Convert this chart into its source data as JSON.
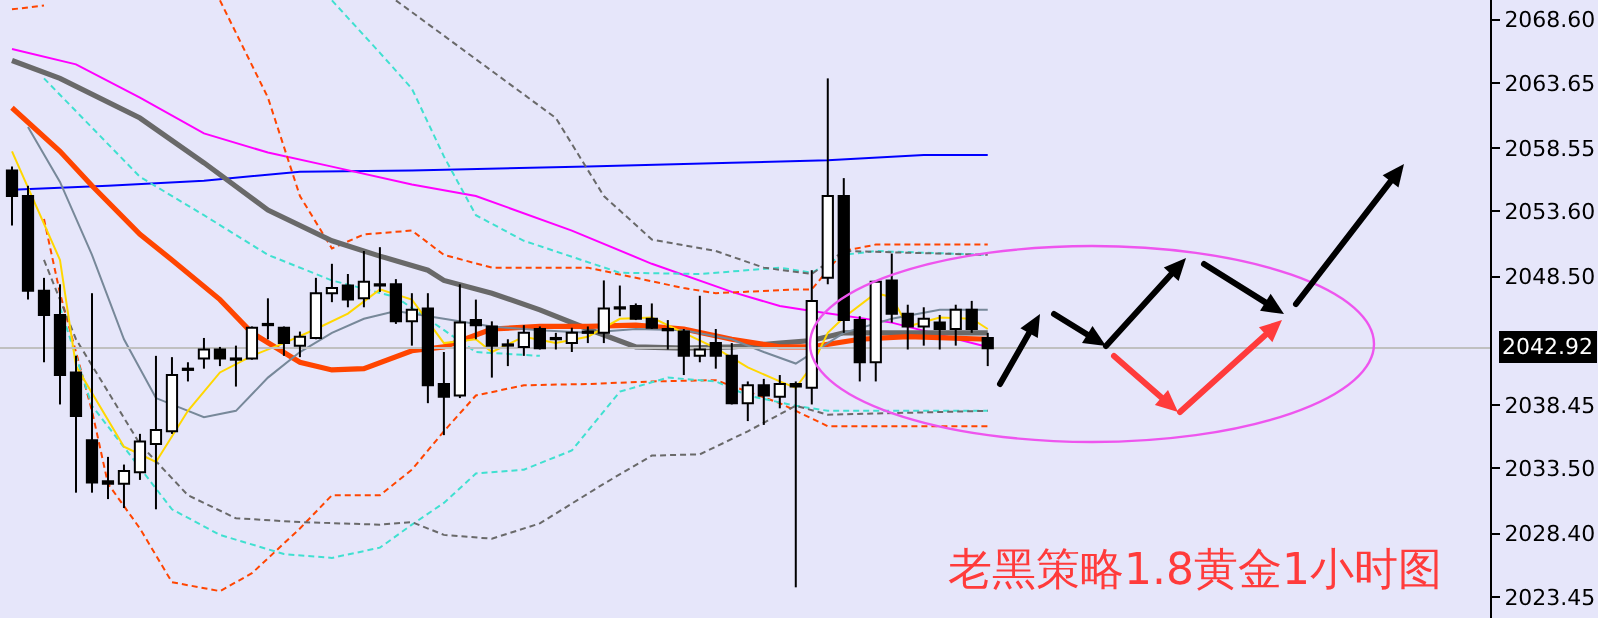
{
  "chart_data": {
    "type": "candlestick",
    "categories": [
      null,
      null,
      null,
      null,
      null,
      null,
      null,
      null,
      null,
      null,
      null,
      null,
      null,
      null,
      null,
      null,
      null,
      null,
      null,
      null,
      null,
      null,
      null,
      null,
      null,
      null,
      null,
      null,
      null,
      null,
      null,
      null,
      null,
      null,
      null,
      null,
      null,
      null,
      null,
      null,
      null,
      null,
      null,
      null,
      null,
      null,
      null,
      null,
      null,
      null,
      null,
      null,
      null,
      null,
      null,
      null,
      null,
      null,
      null,
      null,
      null,
      null
    ],
    "ohlc": [
      [
        2056.8,
        2057.1,
        2052.5,
        2054.8
      ],
      [
        2054.8,
        2055.6,
        2046.7,
        2047.4
      ],
      [
        2047.4,
        2048.4,
        2041.8,
        2045.5
      ],
      [
        2045.5,
        2047.9,
        2038.5,
        2040.8
      ],
      [
        2041.0,
        2042.3,
        2031.6,
        2037.6
      ],
      [
        2035.7,
        2047.2,
        2031.6,
        2032.4
      ],
      [
        2032.5,
        2034.4,
        2031.1,
        2032.3
      ],
      [
        2032.3,
        2033.8,
        2030.4,
        2033.3
      ],
      [
        2033.2,
        2036.2,
        2032.6,
        2035.6
      ],
      [
        2035.4,
        2042.3,
        2030.3,
        2036.5
      ],
      [
        2036.4,
        2042.2,
        2036.2,
        2040.8
      ],
      [
        2041.2,
        2041.8,
        2040.3,
        2041.3
      ],
      [
        2042.1,
        2043.7,
        2041.3,
        2042.8
      ],
      [
        2042.8,
        2043.0,
        2041.5,
        2042.1
      ],
      [
        2042.1,
        2043.1,
        2039.9,
        2042.0
      ],
      [
        2042.1,
        2044.6,
        2042.0,
        2044.5
      ],
      [
        2044.7,
        2046.8,
        2043.6,
        2044.8
      ],
      [
        2044.5,
        2044.6,
        2042.3,
        2043.3
      ],
      [
        2043.1,
        2044.2,
        2042.2,
        2043.8
      ],
      [
        2043.7,
        2048.4,
        2043.6,
        2047.2
      ],
      [
        2047.2,
        2049.5,
        2046.5,
        2047.6
      ],
      [
        2047.8,
        2048.7,
        2046.1,
        2046.7
      ],
      [
        2046.8,
        2050.5,
        2046.1,
        2048.1
      ],
      [
        2047.8,
        2050.8,
        2047.3,
        2047.9
      ],
      [
        2047.9,
        2048.3,
        2044.8,
        2045.0
      ],
      [
        2045.0,
        2047.2,
        2043.1,
        2045.9
      ],
      [
        2046.0,
        2047.2,
        2038.6,
        2040.0
      ],
      [
        2040.1,
        2042.6,
        2036.1,
        2039.1
      ],
      [
        2039.2,
        2047.9,
        2039.0,
        2044.9
      ],
      [
        2045.1,
        2046.7,
        2043.6,
        2044.7
      ],
      [
        2044.6,
        2045.0,
        2040.6,
        2043.1
      ],
      [
        2043.1,
        2043.6,
        2041.5,
        2043.2
      ],
      [
        2043.0,
        2044.7,
        2042.3,
        2044.1
      ],
      [
        2044.4,
        2044.6,
        2042.8,
        2042.9
      ],
      [
        2043.6,
        2044.1,
        2042.8,
        2043.7
      ],
      [
        2043.3,
        2044.5,
        2042.6,
        2044.1
      ],
      [
        2044.1,
        2044.6,
        2043.3,
        2044.2
      ],
      [
        2044.1,
        2048.2,
        2043.3,
        2046.0
      ],
      [
        2046.0,
        2047.8,
        2045.4,
        2046.1
      ],
      [
        2046.2,
        2046.4,
        2045.1,
        2045.2
      ],
      [
        2045.2,
        2046.4,
        2044.4,
        2044.5
      ],
      [
        2044.3,
        2045.1,
        2042.8,
        2044.4
      ],
      [
        2044.2,
        2044.4,
        2040.8,
        2042.3
      ],
      [
        2042.3,
        2047.0,
        2041.8,
        2042.8
      ],
      [
        2043.3,
        2044.4,
        2041.3,
        2042.3
      ],
      [
        2042.3,
        2043.3,
        2038.5,
        2038.6
      ],
      [
        2038.6,
        2040.3,
        2037.2,
        2040.0
      ],
      [
        2040.0,
        2040.5,
        2036.9,
        2039.2
      ],
      [
        2039.1,
        2040.8,
        2038.2,
        2040.1
      ],
      [
        2040.1,
        2040.3,
        2024.2,
        2039.9
      ],
      [
        2039.8,
        2049.0,
        2038.5,
        2046.6
      ],
      [
        2048.4,
        2064.0,
        2047.9,
        2054.8
      ],
      [
        2054.8,
        2056.2,
        2044.1,
        2045.1
      ],
      [
        2045.1,
        2045.4,
        2040.3,
        2041.8
      ],
      [
        2041.8,
        2048.2,
        2040.3,
        2048.1
      ],
      [
        2048.2,
        2050.3,
        2044.9,
        2045.6
      ],
      [
        2045.6,
        2046.3,
        2042.8,
        2044.6
      ],
      [
        2044.6,
        2046.1,
        2043.1,
        2045.2
      ],
      [
        2044.9,
        2045.5,
        2042.8,
        2044.4
      ],
      [
        2044.4,
        2046.3,
        2043.1,
        2045.9
      ],
      [
        2045.9,
        2046.6,
        2044.1,
        2044.4
      ],
      [
        2043.7,
        2044.1,
        2041.5,
        2042.9
      ]
    ],
    "series": [
      {
        "type": "line",
        "color": "#0000ff",
        "line_style": "solid",
        "values": [
          2055.3,
          null,
          null,
          null,
          null,
          null,
          2055.6,
          null,
          null,
          null,
          null,
          null,
          2056.0,
          null,
          null,
          null,
          null,
          null,
          2056.7,
          null,
          null,
          null,
          null,
          null,
          null,
          2056.8,
          null,
          null,
          null,
          null,
          null,
          null,
          null,
          null,
          null,
          null,
          2057.1,
          null,
          null,
          null,
          null,
          null,
          null,
          null,
          null,
          2057.4,
          null,
          null,
          null,
          null,
          null,
          2057.6,
          null,
          null,
          null,
          null,
          null,
          2058.0,
          null,
          null,
          null,
          2058.0
        ]
      },
      {
        "type": "line",
        "color": "#ff00ff",
        "line_style": "solid",
        "values": [
          2066.3,
          null,
          null,
          null,
          2065.1,
          null,
          null,
          null,
          2062.5,
          null,
          null,
          null,
          2059.7,
          null,
          null,
          null,
          2058.2,
          null,
          null,
          null,
          2057.1,
          null,
          null,
          null,
          null,
          2055.7,
          null,
          null,
          null,
          2054.8,
          null,
          null,
          null,
          null,
          null,
          2052.1,
          null,
          null,
          null,
          null,
          2049.5,
          null,
          null,
          null,
          null,
          2047.3,
          null,
          null,
          2046.2,
          null,
          2045.8,
          null,
          null,
          null,
          null,
          2044.9,
          null,
          null,
          null,
          null,
          null,
          2043.0
        ]
      },
      {
        "type": "line",
        "color": "#ff4500",
        "line_style": "dashed",
        "values": [
          2069.4,
          null,
          2069.7,
          null,
          null,
          null,
          null,
          null,
          null,
          null,
          null,
          null,
          null,
          null,
          null,
          null,
          null,
          null,
          null,
          null,
          null,
          null,
          null,
          null,
          null,
          null,
          null,
          null,
          null,
          null,
          null,
          null,
          null,
          null,
          null,
          null,
          null,
          null,
          null,
          null,
          null,
          null,
          null,
          null,
          null,
          null,
          null,
          null,
          null,
          null,
          null,
          null,
          null,
          null,
          null,
          null,
          null,
          null,
          null,
          null,
          null,
          null
        ]
      },
      {
        "type": "line",
        "color": "#ff4500",
        "line_style": "dashed",
        "values": [
          null,
          null,
          null,
          null,
          null,
          null,
          null,
          null,
          null,
          null,
          null,
          null,
          null,
          2070.1,
          null,
          null,
          2062.5,
          null,
          2054.8,
          null,
          2050.7,
          null,
          2051.8,
          null,
          null,
          2052.1,
          null,
          2050.2,
          null,
          null,
          2049.2,
          null,
          null,
          null,
          null,
          null,
          2049.2,
          null,
          null,
          null,
          null,
          null,
          2047.6,
          null,
          2047.2,
          null,
          null,
          null,
          null,
          2047.5,
          2047.5,
          null,
          2050.5,
          null,
          2051.0,
          null,
          null,
          null,
          null,
          null,
          null,
          2051.0
        ]
      },
      {
        "type": "line",
        "color": "#ff4500",
        "line_style": "dashed",
        "values": [
          null,
          null,
          2053.0,
          2047.2,
          null,
          2038.0,
          2032.3,
          null,
          2028.8,
          null,
          2024.6,
          null,
          null,
          2023.9,
          null,
          2025.3,
          null,
          null,
          2028.8,
          null,
          2031.4,
          null,
          null,
          2031.4,
          null,
          2033.4,
          null,
          2036.4,
          null,
          2039.2,
          null,
          null,
          2040.0,
          null,
          null,
          null,
          2040.1,
          null,
          null,
          null,
          2040.3,
          null,
          null,
          null,
          2040.4,
          null,
          2039.5,
          null,
          2038.6,
          null,
          null,
          2036.8,
          null,
          null,
          null,
          null,
          null,
          null,
          null,
          null,
          null,
          2036.8
        ]
      },
      {
        "type": "line",
        "color": "#40e0d0",
        "line_style": "dashed",
        "values": [
          null,
          null,
          null,
          null,
          null,
          null,
          null,
          null,
          null,
          null,
          null,
          null,
          null,
          null,
          null,
          null,
          null,
          null,
          null,
          null,
          2070.1,
          null,
          null,
          2066.0,
          null,
          2063.2,
          null,
          2057.9,
          null,
          2053.3,
          null,
          null,
          2051.3,
          null,
          null,
          null,
          null,
          null,
          2048.8,
          null,
          null,
          null,
          null,
          2048.7,
          null,
          null,
          null,
          null,
          2049.2,
          null,
          2048.8,
          null,
          2050.2,
          null,
          2050.5,
          null,
          null,
          null,
          null,
          null,
          null,
          2050.2
        ]
      },
      {
        "type": "line",
        "color": "#40e0d0",
        "line_style": "dashed",
        "values": [
          null,
          null,
          2064.0,
          null,
          null,
          null,
          null,
          null,
          2056.3,
          null,
          null,
          null,
          2053.3,
          null,
          null,
          null,
          2050.2,
          null,
          null,
          null,
          2048.2,
          null,
          null,
          null,
          2046.9,
          null,
          null,
          null,
          null,
          2042.6,
          null,
          null,
          null,
          2042.3,
          null,
          null,
          null,
          null,
          null,
          null,
          null,
          null,
          null,
          null,
          null,
          null,
          null,
          null,
          null,
          null,
          null,
          null,
          null,
          null,
          null,
          null,
          null,
          null,
          null,
          null,
          null,
          null
        ]
      },
      {
        "type": "line",
        "color": "#40e0d0",
        "line_style": "dashed",
        "values": [
          null,
          null,
          null,
          2046.1,
          null,
          2038.4,
          null,
          null,
          null,
          null,
          2030.3,
          null,
          null,
          2028.3,
          null,
          null,
          null,
          2026.8,
          null,
          null,
          2026.5,
          null,
          null,
          2027.3,
          null,
          2029.1,
          null,
          2030.8,
          null,
          2033.1,
          null,
          null,
          2033.4,
          null,
          null,
          2034.9,
          null,
          null,
          2039.5,
          null,
          null,
          2040.6,
          null,
          null,
          2040.3,
          null,
          2039.2,
          null,
          null,
          2038.4,
          null,
          2038.0,
          null,
          null,
          null,
          null,
          null,
          null,
          null,
          null,
          null,
          2038.0
        ]
      },
      {
        "type": "line",
        "color": "#696969",
        "line_style": "dashed",
        "values": [
          null,
          null,
          null,
          null,
          null,
          null,
          null,
          null,
          null,
          null,
          null,
          null,
          null,
          null,
          null,
          null,
          null,
          null,
          null,
          null,
          null,
          null,
          null,
          null,
          2070.1,
          null,
          null,
          null,
          null,
          null,
          null,
          null,
          null,
          null,
          2060.9,
          null,
          null,
          2054.8,
          null,
          null,
          2051.4,
          null,
          null,
          null,
          2050.5,
          null,
          null,
          2049.2,
          null,
          null,
          2048.7,
          null,
          2050.5,
          null,
          null,
          null,
          null,
          null,
          null,
          null,
          null,
          2050.2
        ]
      },
      {
        "type": "line",
        "color": "#696969",
        "line_style": "dashed",
        "values": [
          null,
          null,
          2049.8,
          null,
          2043.6,
          null,
          null,
          null,
          2035.4,
          null,
          null,
          2031.4,
          null,
          null,
          2029.6,
          null,
          null,
          null,
          2029.3,
          null,
          null,
          null,
          null,
          2029.1,
          null,
          2029.3,
          null,
          2028.3,
          null,
          null,
          2028.0,
          null,
          null,
          2029.2,
          null,
          null,
          null,
          2032.3,
          null,
          null,
          2034.5,
          null,
          null,
          2034.6,
          null,
          null,
          2036.4,
          null,
          null,
          2038.4,
          null,
          2037.7,
          null,
          null,
          null,
          null,
          null,
          null,
          null,
          null,
          null,
          2038.0
        ]
      },
      {
        "type": "line",
        "color": "#696969",
        "line_style": "solid",
        "values": [
          2065.4,
          null,
          null,
          2064.0,
          null,
          null,
          null,
          null,
          2060.9,
          null,
          null,
          null,
          2057.4,
          null,
          null,
          null,
          2053.7,
          null,
          null,
          null,
          2051.3,
          null,
          null,
          2050.1,
          null,
          null,
          2049.0,
          2048.2,
          null,
          null,
          2047.2,
          null,
          null,
          2045.9,
          null,
          null,
          2044.4,
          null,
          null,
          2043.0,
          null,
          null,
          2042.9,
          null,
          null,
          2043.0,
          null,
          null,
          2043.3,
          null,
          2043.5,
          null,
          2044.1,
          null,
          null,
          null,
          null,
          null,
          2044.1,
          null,
          null,
          2044.1
        ]
      },
      {
        "type": "line",
        "color": "#ff4500",
        "line_style": "solid",
        "values": [
          2061.7,
          null,
          null,
          2058.3,
          null,
          2055.6,
          null,
          null,
          2051.8,
          null,
          2049.8,
          null,
          null,
          2046.7,
          null,
          2044.1,
          null,
          null,
          2041.8,
          null,
          2041.2,
          null,
          2041.3,
          null,
          null,
          2042.7,
          null,
          2043.0,
          null,
          null,
          2044.4,
          null,
          null,
          2044.6,
          null,
          null,
          2044.6,
          null,
          null,
          2044.7,
          null,
          null,
          2044.4,
          null,
          null,
          2043.6,
          null,
          null,
          2043.0,
          null,
          2043.0,
          null,
          null,
          2043.6,
          null,
          null,
          2043.8,
          null,
          null,
          null,
          null,
          2043.6
        ]
      },
      {
        "type": "line",
        "color": "#778899",
        "line_style": "solid",
        "values": [
          null,
          2060.2,
          null,
          2055.9,
          null,
          2050.2,
          null,
          2043.6,
          null,
          2039.0,
          null,
          null,
          2037.5,
          null,
          2038.0,
          null,
          2040.6,
          null,
          2042.6,
          null,
          2044.1,
          null,
          2045.2,
          null,
          2045.8,
          null,
          null,
          2045.2,
          null,
          null,
          2044.6,
          null,
          null,
          2044.3,
          null,
          null,
          2044.1,
          null,
          null,
          2044.4,
          null,
          null,
          2044.3,
          null,
          null,
          2043.6,
          null,
          2042.6,
          null,
          2041.7,
          null,
          null,
          2044.1,
          null,
          null,
          2045.2,
          null,
          null,
          2045.9,
          null,
          null,
          2045.9
        ]
      },
      {
        "type": "line",
        "color": "#ffd700",
        "line_style": "solid",
        "values": [
          2058.3,
          null,
          null,
          2049.8,
          2041.5,
          null,
          null,
          2035.2,
          null,
          2034.0,
          null,
          2038.0,
          null,
          2041.0,
          null,
          2042.3,
          null,
          2043.3,
          null,
          2044.4,
          null,
          2045.6,
          null,
          2047.5,
          null,
          2046.7,
          null,
          2043.3,
          null,
          2043.6,
          2042.6,
          null,
          2043.8,
          null,
          2043.3,
          null,
          2043.8,
          null,
          2045.2,
          null,
          2045.3,
          null,
          2044.1,
          null,
          2042.9,
          null,
          2041.4,
          null,
          2040.3,
          2039.8,
          2041.5,
          2044.1,
          2045.3,
          null,
          2047.2,
          2046.9,
          2044.6,
          null,
          2045.3,
          null,
          2045.2,
          2044.4
        ]
      }
    ],
    "ylim": [
      2021.8,
      2070.13
    ],
    "yticks": [
      {
        "value": 2068.6,
        "label": "2068.60"
      },
      {
        "value": 2063.65,
        "label": "2063.65"
      },
      {
        "value": 2058.55,
        "label": "2058.55"
      },
      {
        "value": 2053.6,
        "label": "2053.60"
      },
      {
        "value": 2048.5,
        "label": "2048.50"
      },
      {
        "value": 2038.45,
        "label": "2038.45"
      },
      {
        "value": 2033.5,
        "label": "2033.50"
      },
      {
        "value": 2028.4,
        "label": "2028.40"
      },
      {
        "value": 2023.45,
        "label": "2023.45"
      }
    ],
    "ref_lines": [
      {
        "axis": "y",
        "value": 2042.92,
        "label": "2042.92",
        "color": "#c0c0c0"
      }
    ],
    "annotations": [
      "老黑策略1.8黄金1小时图"
    ],
    "tick_labels": "y"
  }
}
